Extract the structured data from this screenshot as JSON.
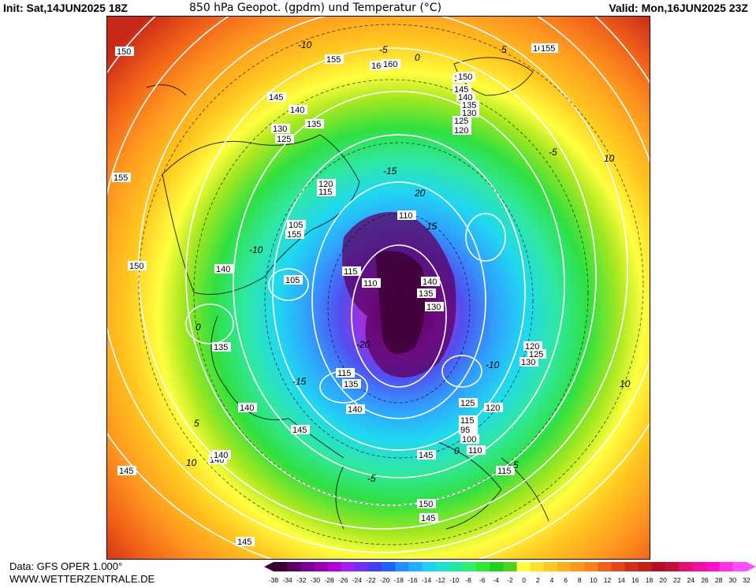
{
  "header": {
    "init": "Init: Sat,14JUN2025 18Z",
    "title": "850 hPa Geopot. (gpdm) und Temperatur (°C)",
    "valid": "Valid: Mon,16JUN2025 23Z"
  },
  "footer": {
    "data_source": "Data: GFS OPER 1.000°",
    "website": "WWW.WETTERZENTRALE.DE"
  },
  "color_scale": {
    "labels": [
      "-38",
      "-34",
      "-32",
      "-30",
      "-28",
      "-26",
      "-24",
      "-22",
      "-20",
      "-18",
      "-16",
      "-14",
      "-12",
      "-10",
      "-8",
      "-6",
      "-4",
      "-2",
      "0",
      "2",
      "4",
      "6",
      "8",
      "10",
      "12",
      "14",
      "16",
      "18",
      "20",
      "22",
      "24",
      "26",
      "28",
      "30",
      "32"
    ],
    "colors": [
      "#3a0030",
      "#5a0060",
      "#7a0090",
      "#9a00b0",
      "#b400d2",
      "#a020f0",
      "#7030f0",
      "#4040f0",
      "#2060ff",
      "#2090ff",
      "#20b0ff",
      "#20d0f0",
      "#20e0d0",
      "#20e8a0",
      "#30f070",
      "#30e830",
      "#20d020",
      "#50d020",
      "#ffff40",
      "#ffe030",
      "#ffc820",
      "#ffb020",
      "#ff9820",
      "#ff8020",
      "#f06018",
      "#e04818",
      "#d03018",
      "#c02018",
      "#b01020",
      "#c0103c",
      "#e01070",
      "#f010a0",
      "#ff10c8",
      "#ff30e8",
      "#ff50ff"
    ]
  },
  "map": {
    "geopotential_labels": [
      "150",
      "155",
      "160",
      "150",
      "145",
      "140",
      "135",
      "130",
      "125",
      "120",
      "115",
      "105",
      "155",
      "160",
      "150",
      "145",
      "140",
      "135",
      "130",
      "125",
      "120",
      "110",
      "115",
      "110",
      "105",
      "115",
      "140",
      "145",
      "140",
      "135",
      "125",
      "120",
      "115",
      "95",
      "100",
      "110",
      "115",
      "120",
      "125",
      "130",
      "135",
      "140",
      "145",
      "150",
      "145",
      "140",
      "135",
      "130",
      "140",
      "145",
      "150",
      "155",
      "160",
      "155",
      "145",
      "140"
    ],
    "temperature_labels": [
      "-10",
      "-5",
      "0",
      "5",
      "10",
      "15",
      "20",
      "-15",
      "-20",
      "10",
      "-10",
      "0",
      "5",
      "10",
      "-5",
      "-15",
      "-10",
      "-5",
      "5",
      "0"
    ]
  }
}
